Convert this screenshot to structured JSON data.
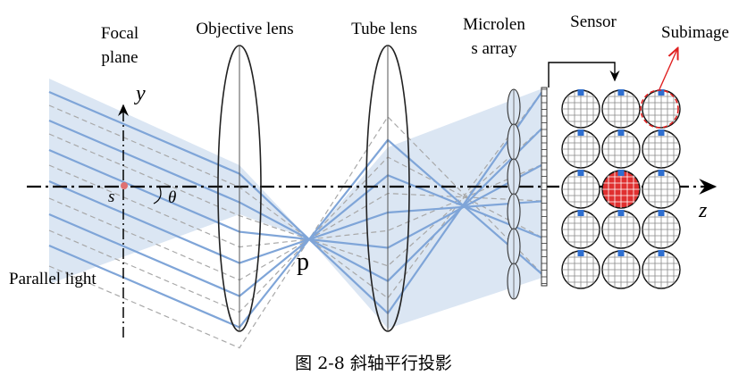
{
  "labels": {
    "focal_plane_line1": "Focal",
    "focal_plane_line2": "plane",
    "objective_lens": "Objective lens",
    "tube_lens": "Tube lens",
    "microlens_line1": "Microlen",
    "microlens_line2": "s array",
    "sensor": "Sensor",
    "subimage": "Subimage",
    "y_axis": "y",
    "z_axis": "z",
    "point_s": "s",
    "angle": "θ",
    "point_p": "p",
    "parallel_light": "Parallel light"
  },
  "caption": "图 2-8  斜轴平行投影",
  "colors": {
    "beam_fill": "#dbe6f3",
    "ray": "#7fa5d8",
    "dashed_ray": "#a8a8a8",
    "highlight": "#e03030",
    "pixel_marker": "#2f6fd0",
    "subimage_arrow": "#e02020"
  },
  "sensor": {
    "rows": 5,
    "cols": 3,
    "highlighted_cell": [
      2,
      1
    ],
    "subimage_cell": [
      0,
      2
    ]
  }
}
